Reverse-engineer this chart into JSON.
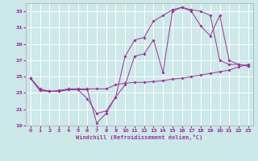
{
  "xlabel": "Windchill (Refroidissement éolien,°C)",
  "bg_color": "#cce8e8",
  "grid_color": "#ffffff",
  "line_color": "#993399",
  "xlim": [
    -0.5,
    23.5
  ],
  "ylim": [
    19,
    34
  ],
  "yticks": [
    19,
    21,
    23,
    25,
    27,
    29,
    31,
    33
  ],
  "xticks": [
    0,
    1,
    2,
    3,
    4,
    5,
    6,
    7,
    8,
    9,
    10,
    11,
    12,
    13,
    14,
    15,
    16,
    17,
    18,
    19,
    20,
    21,
    22,
    23
  ],
  "series": [
    {
      "x": [
        0,
        1,
        2,
        3,
        4,
        5,
        6,
        7,
        8,
        9,
        10,
        11,
        12,
        13,
        14,
        15,
        16,
        17,
        18,
        19,
        20,
        21,
        22,
        23
      ],
      "y": [
        24.8,
        23.5,
        23.2,
        23.3,
        23.5,
        23.5,
        23.5,
        23.5,
        23.5,
        24.0,
        24.2,
        24.3,
        24.3,
        24.4,
        24.5,
        24.7,
        24.8,
        25.0,
        25.2,
        25.4,
        25.6,
        25.8,
        26.2,
        26.5
      ]
    },
    {
      "x": [
        0,
        1,
        2,
        3,
        4,
        5,
        6,
        7,
        8,
        9,
        10,
        11,
        12,
        13,
        14,
        15,
        16,
        17,
        18,
        19,
        20,
        21,
        22,
        23
      ],
      "y": [
        24.8,
        23.3,
        23.2,
        23.2,
        23.4,
        23.4,
        22.3,
        20.5,
        20.8,
        22.5,
        24.0,
        27.5,
        27.8,
        29.5,
        25.5,
        33.0,
        33.5,
        33.2,
        33.0,
        32.5,
        27.0,
        26.5,
        26.5,
        26.3
      ]
    },
    {
      "x": [
        0,
        1,
        2,
        3,
        4,
        5,
        6,
        7,
        8,
        9,
        10,
        11,
        12,
        13,
        14,
        15,
        16,
        17,
        18,
        19,
        20,
        21,
        22,
        23
      ],
      "y": [
        24.8,
        23.3,
        23.2,
        23.2,
        23.4,
        23.4,
        23.4,
        19.3,
        20.5,
        22.5,
        27.5,
        29.5,
        29.8,
        31.8,
        32.5,
        33.2,
        33.5,
        33.0,
        31.2,
        30.0,
        32.5,
        27.0,
        26.5,
        26.3
      ]
    }
  ]
}
